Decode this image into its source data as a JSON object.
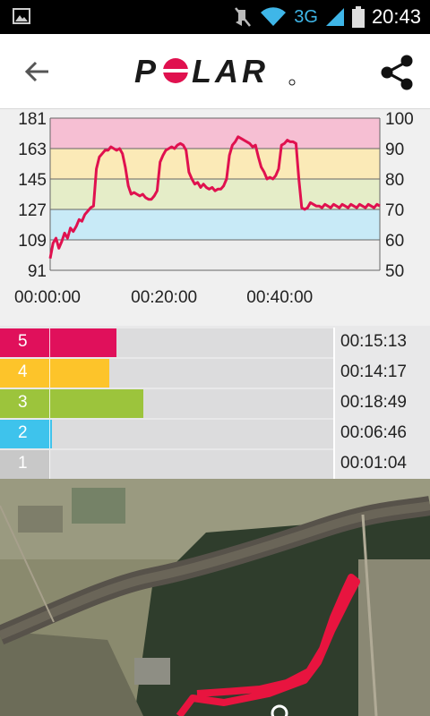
{
  "status_bar": {
    "network": "3G",
    "time": "20:43"
  },
  "app_bar": {
    "brand": "POLAR"
  },
  "chart_data": {
    "type": "line",
    "x": [
      0,
      0.5,
      1,
      1.5,
      2,
      2.5,
      3,
      3.5,
      4,
      4.5,
      5,
      5.5,
      6,
      6.5,
      7,
      7.5,
      8,
      8.5,
      9,
      9.5,
      10,
      10.5,
      11,
      11.5,
      12,
      12.5,
      13,
      13.5,
      14,
      14.5,
      15,
      15.5,
      16,
      16.5,
      17,
      17.5,
      18,
      18.5,
      19,
      19.5,
      20,
      20.5,
      21,
      21.5,
      22,
      22.5,
      23,
      23.5,
      24,
      24.5,
      25,
      25.5,
      26,
      26.5,
      27,
      27.5,
      28,
      28.5,
      29,
      29.5,
      30,
      30.5,
      31,
      31.5,
      32,
      32.5,
      33,
      33.5,
      34,
      34.5,
      35,
      35.5,
      36,
      36.5,
      37,
      37.5,
      38,
      38.5,
      39,
      39.5,
      40,
      40.5,
      41,
      41.5,
      42,
      42.5,
      43,
      43.5,
      44,
      44.5,
      45,
      45.5,
      46,
      46.5,
      47,
      47.5,
      48,
      48.5,
      49,
      49.5,
      50,
      50.5,
      51,
      51.5,
      52,
      52.5,
      53,
      53.5,
      54,
      54.5,
      55,
      55.5,
      56,
      56.5,
      57
    ],
    "y": [
      98,
      107,
      110,
      104,
      108,
      113,
      110,
      116,
      114,
      117,
      121,
      120,
      124,
      126,
      128,
      129,
      151,
      158,
      160,
      162,
      162,
      164,
      163,
      162,
      163,
      160,
      152,
      141,
      136,
      137,
      136,
      135,
      136,
      134,
      133,
      133,
      135,
      138,
      155,
      159,
      162,
      163,
      164,
      163,
      165,
      166,
      165,
      162,
      149,
      145,
      142,
      143,
      140,
      142,
      140,
      139,
      140,
      138,
      139,
      139,
      141,
      145,
      159,
      165,
      167,
      170,
      169,
      168,
      167,
      166,
      164,
      165,
      158,
      152,
      149,
      145,
      146,
      145,
      147,
      151,
      165,
      166,
      168,
      167,
      167,
      166,
      145,
      128,
      127,
      128,
      131,
      130,
      129,
      129,
      128,
      130,
      129,
      128,
      130,
      129,
      128,
      130,
      129,
      128,
      130,
      129,
      128,
      130,
      129,
      128,
      130,
      129,
      128,
      130,
      129
    ],
    "x_tick_labels": [
      "00:00:00",
      "00:20:00",
      "00:40:00"
    ],
    "x_tick_values": [
      0,
      20,
      40
    ],
    "xlim": [
      0,
      57
    ],
    "ylim": [
      91,
      181
    ],
    "y_ticks_left": [
      181,
      163,
      145,
      127,
      109,
      91
    ],
    "y_ticks_right": [
      100,
      90,
      80,
      70,
      60,
      50
    ],
    "zone_bands": [
      {
        "zone": 5,
        "from": 163,
        "to": 181,
        "color": "#f6bfd3"
      },
      {
        "zone": 4,
        "from": 145,
        "to": 163,
        "color": "#fbeab7"
      },
      {
        "zone": 3,
        "from": 127,
        "to": 145,
        "color": "#e5edc8"
      },
      {
        "zone": 2,
        "from": 109,
        "to": 127,
        "color": "#c8eaf7"
      },
      {
        "zone": 1,
        "from": 91,
        "to": 109,
        "color": "#ededed"
      }
    ],
    "line_color": "#e0114f",
    "grid": true
  },
  "zones": [
    {
      "label": "5",
      "time": "00:15:13",
      "fraction": 0.81,
      "color": "#e0105b"
    },
    {
      "label": "4",
      "time": "00:14:17",
      "fraction": 0.76,
      "color": "#fdc42a"
    },
    {
      "label": "3",
      "time": "00:18:49",
      "fraction": 1.0,
      "color": "#9cc43c"
    },
    {
      "label": "2",
      "time": "00:06:46",
      "fraction": 0.36,
      "color": "#3ec3ec"
    },
    {
      "label": "1",
      "time": "00:01:04",
      "fraction": 0.06,
      "color": "#c8c8c8"
    }
  ],
  "colors": {
    "brand_red": "#e0114f",
    "route": "#e8143f"
  },
  "icons": {
    "back": "arrow-left-icon",
    "share": "share-icon"
  }
}
